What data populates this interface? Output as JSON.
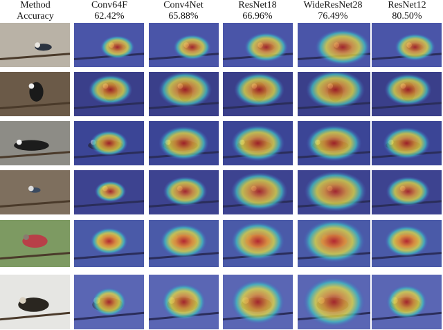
{
  "header": {
    "row_label_line1": "Method",
    "row_label_line2": "Accuracy",
    "methods": [
      {
        "name": "Conv64F",
        "accuracy": "62.42%"
      },
      {
        "name": "Conv4Net",
        "accuracy": "65.88%"
      },
      {
        "name": "ResNet18",
        "accuracy": "66.96%"
      },
      {
        "name": "WideResNet28",
        "accuracy": "76.49%"
      },
      {
        "name": "ResNet12",
        "accuracy": "80.50%"
      }
    ]
  },
  "rows": [
    {
      "subject": "kingfisher on chain-link fence",
      "background": "#b9b2a6",
      "overlay_base": "#4a55a8"
    },
    {
      "subject": "black-and-white warbler on branches",
      "background": "#6b5a48",
      "overlay_base": "#3a3f8a"
    },
    {
      "subject": "black-and-white warbler on tree trunk",
      "background": "#8d8c86",
      "overlay_base": "#3b4596"
    },
    {
      "subject": "small bird on thin perch",
      "background": "#7e6f5e",
      "overlay_base": "#3d4390"
    },
    {
      "subject": "house finch on post",
      "background": "#7d9a62",
      "overlay_base": "#4a5aa8"
    },
    {
      "subject": "streaked bird on branch",
      "background": "#e6e6e3",
      "overlay_base": "#5a66b4"
    }
  ],
  "heat_intensity": [
    [
      0.55,
      0.6,
      0.7,
      0.85,
      0.65
    ],
    [
      0.7,
      0.85,
      0.8,
      0.9,
      0.75
    ],
    [
      0.6,
      0.8,
      0.85,
      0.85,
      0.75
    ],
    [
      0.5,
      0.7,
      0.9,
      0.95,
      0.7
    ],
    [
      0.6,
      0.75,
      0.85,
      0.95,
      0.7
    ],
    [
      0.55,
      0.7,
      0.85,
      0.95,
      0.65
    ]
  ]
}
